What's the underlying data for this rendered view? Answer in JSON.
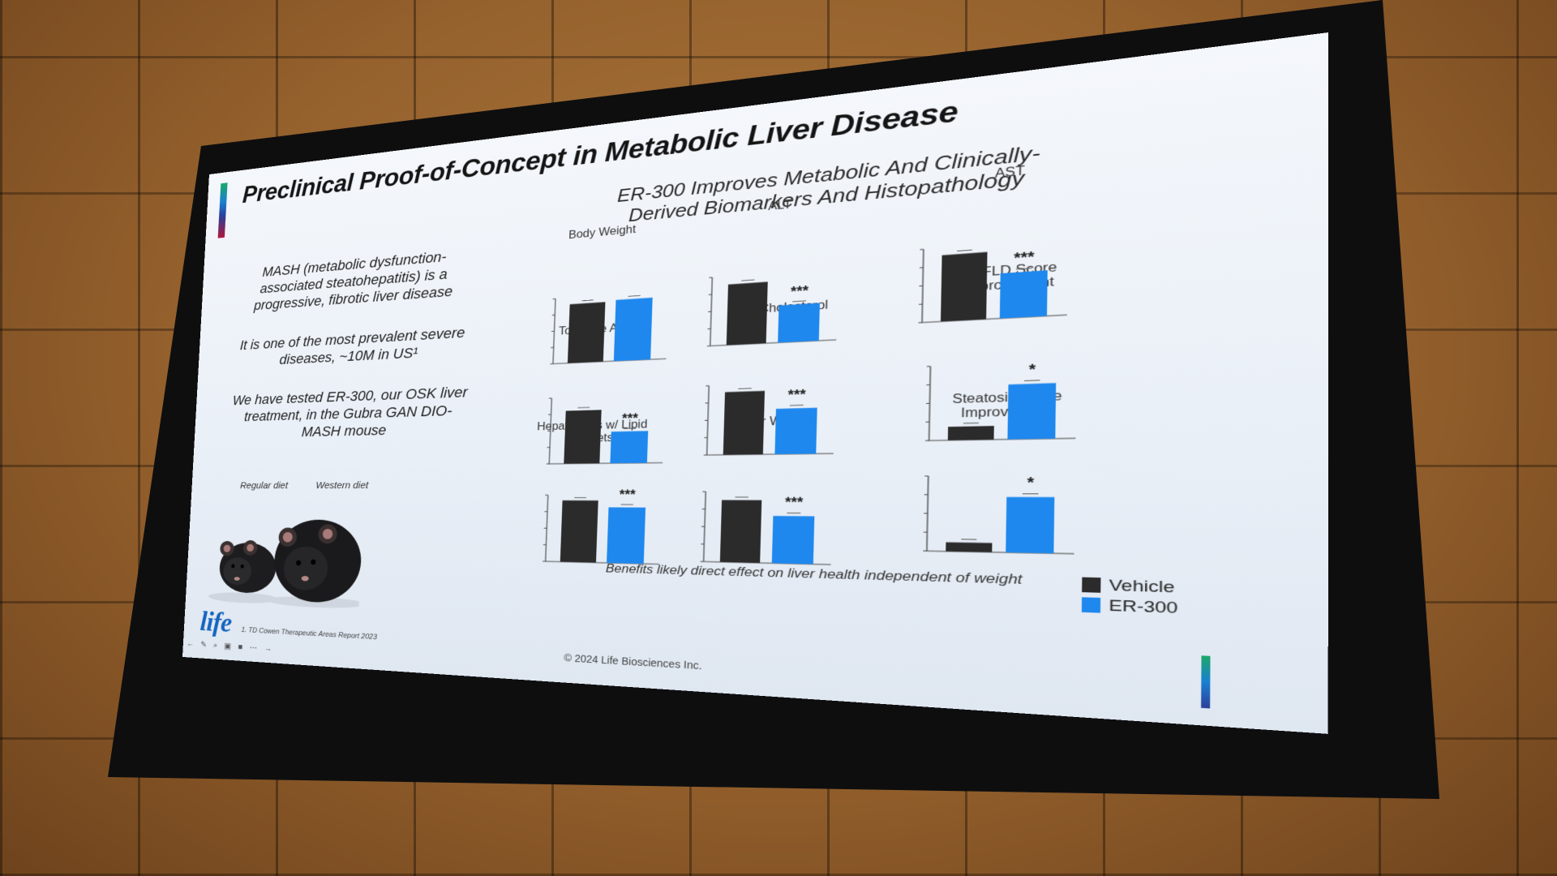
{
  "slide": {
    "title": "Preclinical Proof-of-Concept in Metabolic Liver Disease",
    "subtitle": "ER-300 Improves Metabolic And Clinically-Derived Biomarkers And Histopathology",
    "bullets": [
      "MASH (metabolic dysfunction-associated steatohepatitis) is a progressive, fibrotic liver disease",
      "It is one of the most prevalent severe diseases, ~10M in US¹",
      "We have tested ER-300, our OSK liver treatment, in the Gubra GAN DIO-MASH mouse"
    ],
    "mouse_labels": {
      "regular": "Regular diet",
      "western": "Western diet"
    },
    "bottom_caption": "Benefits likely direct effect on liver health independent of weight",
    "legend": [
      {
        "label": "Vehicle",
        "color": "#2b2b2b"
      },
      {
        "label": "ER-300",
        "color": "#1e88ee"
      }
    ],
    "logo_text": "life",
    "footnote": "1. TD Cowen Therapeutic Areas Report 2023",
    "copyright": "© 2024 Life Biosciences Inc.",
    "toolbar_icons": [
      "back-icon",
      "pen-icon",
      "zoom-icon",
      "captions-icon",
      "camera-icon",
      "more-icon",
      "forward-icon"
    ]
  },
  "chart_data": [
    {
      "type": "bar",
      "title": "Body Weight",
      "categories": [
        "Vehicle",
        "ER-300"
      ],
      "values": [
        0.9,
        0.92
      ],
      "significance": ""
    },
    {
      "type": "bar",
      "title": "ALT",
      "categories": [
        "Vehicle",
        "ER-300"
      ],
      "values": [
        0.88,
        0.53
      ],
      "significance": "***"
    },
    {
      "type": "bar",
      "title": "AST",
      "categories": [
        "Vehicle",
        "ER-300"
      ],
      "values": [
        0.9,
        0.6
      ],
      "significance": "***"
    },
    {
      "type": "bar",
      "title": "Total Bile Acids",
      "categories": [
        "Vehicle",
        "ER-300"
      ],
      "values": [
        0.8,
        0.47
      ],
      "significance": "***"
    },
    {
      "type": "bar",
      "title": "Total Cholesterol",
      "categories": [
        "Vehicle",
        "ER-300"
      ],
      "values": [
        0.9,
        0.64
      ],
      "significance": "***"
    },
    {
      "type": "bar",
      "title": "NAFLD Score Improvement",
      "categories": [
        "Vehicle",
        "ER-300"
      ],
      "values": [
        0.18,
        0.72
      ],
      "significance": "*"
    },
    {
      "type": "bar",
      "title": "Hepatocytes w/ Lipid Droplets",
      "categories": [
        "Vehicle",
        "ER-300"
      ],
      "values": [
        0.92,
        0.82
      ],
      "significance": "***"
    },
    {
      "type": "bar",
      "title": "Liver Weight",
      "categories": [
        "Vehicle",
        "ER-300"
      ],
      "values": [
        0.88,
        0.66
      ],
      "significance": "***"
    },
    {
      "type": "bar",
      "title": "Steatosis Score Improvement",
      "categories": [
        "Vehicle",
        "ER-300"
      ],
      "values": [
        0.12,
        0.72
      ],
      "significance": "*"
    }
  ]
}
